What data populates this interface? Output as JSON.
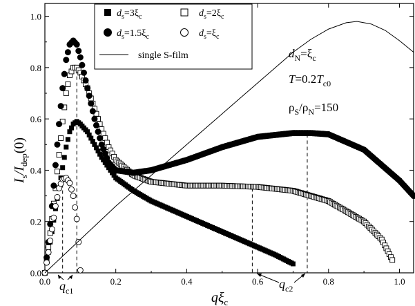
{
  "chart_data": {
    "type": "scatter",
    "xlim": [
      0.0,
      1.04
    ],
    "ylim": [
      0.0,
      1.05
    ],
    "xticks": [
      0.0,
      0.2,
      0.4,
      0.6,
      0.8,
      1.0
    ],
    "xtick_labels": [
      "0.0",
      "0.2",
      "0.4",
      "0.6",
      "0.8",
      "1.0"
    ],
    "yticks": [
      0.0,
      0.2,
      0.4,
      0.6,
      0.8,
      1.0
    ],
    "ytick_labels": [
      "0.0",
      "0.2",
      "0.4",
      "0.6",
      "0.8",
      "1.0"
    ],
    "xlabel": {
      "main": "qξ",
      "sub": "c"
    },
    "ylabel": {
      "main": "I",
      "sub1": "s",
      "slash": "/I",
      "sub2": "dep",
      "tail": "(0)"
    },
    "legend": {
      "placement": "top-left",
      "entries": [
        {
          "marker": "filled-square",
          "text": "d",
          "sub": "s",
          "eq": "=3ξ",
          "sub2": "c"
        },
        {
          "marker": "open-square",
          "text": "d",
          "sub": "s",
          "eq": "=2ξ",
          "sub2": "c"
        },
        {
          "marker": "filled-circle",
          "text": "d",
          "sub": "s",
          "eq": "=1.5ξ",
          "sub2": "c"
        },
        {
          "marker": "open-circle",
          "text": "d",
          "sub": "s",
          "eq": "=ξ",
          "sub2": "c"
        },
        {
          "marker": "line",
          "text": "single S-film"
        }
      ]
    },
    "annotations": {
      "dn": {
        "main": "d",
        "sub": "N",
        "tail": "=ξ",
        "sub2": "c"
      },
      "temp": {
        "main": "T",
        "tail": "=0.2",
        "main2": "T",
        "sub": "c0"
      },
      "rho": {
        "main": "ρ",
        "sub": "S",
        "slash": "/ρ",
        "sub2": "N",
        "tail": "=150"
      },
      "qc1": {
        "main": "q",
        "sub": "c1"
      },
      "qc2": {
        "main": "q",
        "sub": "c2"
      }
    },
    "dashed_lines": [
      {
        "x": 0.05,
        "y": 0.37
      },
      {
        "x": 0.09,
        "y": 0.79
      },
      {
        "x": 0.585,
        "y": 0.33
      },
      {
        "x": 0.74,
        "y": 0.54
      }
    ],
    "series": [
      {
        "marker": "filled-square",
        "points": [
          [
            0.0,
            0.0
          ],
          [
            0.01,
            0.08
          ],
          [
            0.02,
            0.16
          ],
          [
            0.03,
            0.25
          ],
          [
            0.04,
            0.33
          ],
          [
            0.05,
            0.41
          ],
          [
            0.06,
            0.49
          ],
          [
            0.07,
            0.55
          ],
          [
            0.08,
            0.58
          ],
          [
            0.09,
            0.59
          ],
          [
            0.1,
            0.58
          ],
          [
            0.12,
            0.55
          ],
          [
            0.14,
            0.5
          ],
          [
            0.16,
            0.45
          ],
          [
            0.18,
            0.41
          ],
          [
            0.2,
            0.37
          ],
          [
            0.25,
            0.32
          ],
          [
            0.3,
            0.28
          ],
          [
            0.35,
            0.25
          ],
          [
            0.4,
            0.22
          ],
          [
            0.45,
            0.19
          ],
          [
            0.5,
            0.16
          ],
          [
            0.55,
            0.13
          ],
          [
            0.6,
            0.1
          ],
          [
            0.65,
            0.07
          ],
          [
            0.7,
            0.035
          ]
        ]
      },
      {
        "marker": "open-square",
        "points": [
          [
            0.0,
            0.0
          ],
          [
            0.01,
            0.1
          ],
          [
            0.02,
            0.21
          ],
          [
            0.03,
            0.33
          ],
          [
            0.04,
            0.46
          ],
          [
            0.05,
            0.59
          ],
          [
            0.06,
            0.7
          ],
          [
            0.07,
            0.77
          ],
          [
            0.08,
            0.8
          ],
          [
            0.09,
            0.8
          ],
          [
            0.1,
            0.78
          ],
          [
            0.12,
            0.72
          ],
          [
            0.14,
            0.64
          ],
          [
            0.16,
            0.56
          ],
          [
            0.18,
            0.49
          ],
          [
            0.2,
            0.44
          ],
          [
            0.25,
            0.38
          ],
          [
            0.3,
            0.355
          ],
          [
            0.4,
            0.34
          ],
          [
            0.5,
            0.34
          ],
          [
            0.6,
            0.335
          ],
          [
            0.7,
            0.32
          ],
          [
            0.8,
            0.28
          ],
          [
            0.9,
            0.2
          ],
          [
            0.95,
            0.13
          ],
          [
            0.98,
            0.05
          ]
        ]
      },
      {
        "marker": "filled-circle",
        "points": [
          [
            0.0,
            0.0
          ],
          [
            0.01,
            0.12
          ],
          [
            0.02,
            0.26
          ],
          [
            0.03,
            0.42
          ],
          [
            0.04,
            0.58
          ],
          [
            0.05,
            0.72
          ],
          [
            0.06,
            0.83
          ],
          [
            0.07,
            0.89
          ],
          [
            0.08,
            0.905
          ],
          [
            0.09,
            0.89
          ],
          [
            0.1,
            0.84
          ],
          [
            0.12,
            0.72
          ],
          [
            0.14,
            0.6
          ],
          [
            0.16,
            0.5
          ],
          [
            0.18,
            0.43
          ],
          [
            0.2,
            0.4
          ],
          [
            0.25,
            0.39
          ],
          [
            0.3,
            0.4
          ],
          [
            0.4,
            0.44
          ],
          [
            0.5,
            0.49
          ],
          [
            0.6,
            0.53
          ],
          [
            0.7,
            0.545
          ],
          [
            0.75,
            0.545
          ],
          [
            0.8,
            0.54
          ],
          [
            0.9,
            0.48
          ],
          [
            1.0,
            0.36
          ],
          [
            1.04,
            0.3
          ]
        ]
      },
      {
        "marker": "open-circle",
        "points": [
          [
            0.0,
            0.0
          ],
          [
            0.01,
            0.08
          ],
          [
            0.02,
            0.17
          ],
          [
            0.03,
            0.26
          ],
          [
            0.04,
            0.33
          ],
          [
            0.05,
            0.365
          ],
          [
            0.06,
            0.37
          ],
          [
            0.07,
            0.35
          ],
          [
            0.08,
            0.3
          ],
          [
            0.09,
            0.21
          ],
          [
            0.095,
            0.12
          ],
          [
            0.1,
            0.01
          ]
        ]
      },
      {
        "marker": "line",
        "points": [
          [
            0.0,
            0.0
          ],
          [
            0.05,
            0.065
          ],
          [
            0.1,
            0.13
          ],
          [
            0.15,
            0.195
          ],
          [
            0.2,
            0.26
          ],
          [
            0.25,
            0.32
          ],
          [
            0.3,
            0.38
          ],
          [
            0.35,
            0.44
          ],
          [
            0.4,
            0.5
          ],
          [
            0.45,
            0.56
          ],
          [
            0.5,
            0.62
          ],
          [
            0.55,
            0.68
          ],
          [
            0.6,
            0.74
          ],
          [
            0.65,
            0.8
          ],
          [
            0.7,
            0.86
          ],
          [
            0.75,
            0.91
          ],
          [
            0.8,
            0.95
          ],
          [
            0.85,
            0.975
          ],
          [
            0.88,
            0.98
          ],
          [
            0.92,
            0.97
          ],
          [
            0.96,
            0.945
          ],
          [
            1.0,
            0.905
          ],
          [
            1.04,
            0.86
          ]
        ]
      }
    ]
  }
}
